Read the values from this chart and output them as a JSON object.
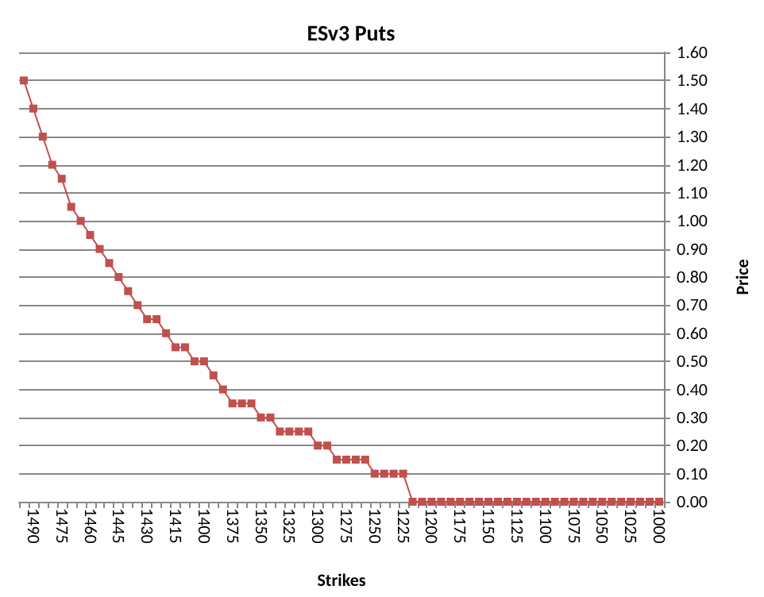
{
  "chart_data": {
    "type": "line",
    "title": "ESv3 Puts",
    "xlabel": "Strikes",
    "ylabel": "Price",
    "categories": [
      null,
      "1490",
      null,
      null,
      "1475",
      null,
      null,
      "1460",
      null,
      null,
      "1445",
      null,
      null,
      "1430",
      null,
      null,
      "1415",
      null,
      null,
      "1400",
      null,
      null,
      "1375",
      null,
      null,
      "1350",
      null,
      null,
      "1325",
      null,
      null,
      "1300",
      null,
      null,
      "1275",
      null,
      null,
      "1250",
      null,
      null,
      "1225",
      null,
      null,
      "1200",
      null,
      null,
      "1175",
      null,
      null,
      "1150",
      null,
      null,
      "1125",
      null,
      null,
      "1100",
      null,
      null,
      "1075",
      null,
      null,
      "1050",
      null,
      null,
      "1025",
      null,
      null,
      "1000"
    ],
    "series": [
      {
        "color": "#c0504d",
        "values": [
          1.5,
          1.4,
          1.3,
          1.2,
          1.15,
          1.05,
          1.0,
          0.95,
          0.9,
          0.85,
          0.8,
          0.75,
          0.7,
          0.65,
          0.65,
          0.6,
          0.55,
          0.55,
          0.5,
          0.5,
          0.45,
          0.4,
          0.35,
          0.35,
          0.35,
          0.3,
          0.3,
          0.25,
          0.25,
          0.25,
          0.25,
          0.2,
          0.2,
          0.15,
          0.15,
          0.15,
          0.15,
          0.1,
          0.1,
          0.1,
          0.1,
          0,
          0,
          0,
          0,
          0,
          0,
          0,
          0,
          0,
          0,
          0,
          0,
          0,
          0,
          0,
          0,
          0,
          0,
          0,
          0,
          0,
          0,
          0,
          0,
          0,
          0,
          0
        ]
      }
    ],
    "ylim": [
      0,
      1.6
    ],
    "yticks": [
      {
        "value": 0,
        "label": "0.00"
      },
      {
        "value": 0.1,
        "label": "0.10"
      },
      {
        "value": 0.2,
        "label": "0.20"
      },
      {
        "value": 0.3,
        "label": "0.30"
      },
      {
        "value": 0.4,
        "label": "0.40"
      },
      {
        "value": 0.5,
        "label": "0.50"
      },
      {
        "value": 0.6,
        "label": "0.60"
      },
      {
        "value": 0.7,
        "label": "0.70"
      },
      {
        "value": 0.8,
        "label": "0.80"
      },
      {
        "value": 0.9,
        "label": "0.90"
      },
      {
        "value": 1.0,
        "label": "1.00"
      },
      {
        "value": 1.1,
        "label": "1.10"
      },
      {
        "value": 1.2,
        "label": "1.20"
      },
      {
        "value": 1.3,
        "label": "1.30"
      },
      {
        "value": 1.4,
        "label": "1.40"
      },
      {
        "value": 1.5,
        "label": "1.50"
      },
      {
        "value": 1.6,
        "label": "1.60"
      }
    ],
    "grid": "y",
    "marker": "square",
    "line_style": "solid"
  }
}
